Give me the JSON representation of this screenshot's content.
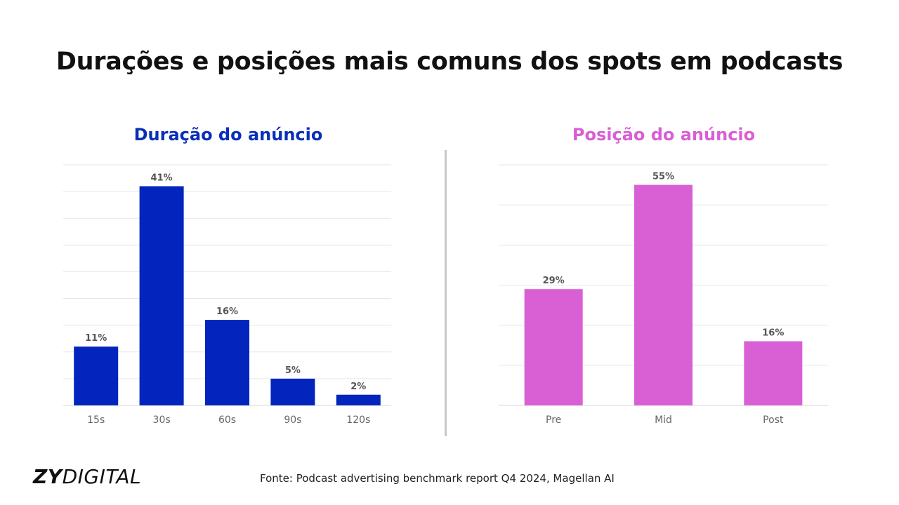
{
  "title": "Durações e posições mais comuns dos spots em podcasts",
  "footer": {
    "brand_bold": "ZY",
    "brand_light": "DIGITAL",
    "source": "Fonte: Podcast advertising benchmark report Q4 2024, Magellan AI"
  },
  "chart_data": [
    {
      "type": "bar",
      "title": "Duração do anúncio",
      "categories": [
        "15s",
        "30s",
        "60s",
        "90s",
        "120s"
      ],
      "values": [
        11,
        41,
        16,
        5,
        2
      ],
      "data_labels": [
        "11%",
        "41%",
        "16%",
        "5%",
        "2%"
      ],
      "ylim": [
        0,
        45
      ],
      "grid": true,
      "color": "#0325bd",
      "title_color": "#0a2fb8"
    },
    {
      "type": "bar",
      "title": "Posição do anúncio",
      "categories": [
        "Pre",
        "Mid",
        "Post"
      ],
      "values": [
        29,
        55,
        16
      ],
      "data_labels": [
        "29%",
        "55%",
        "16%"
      ],
      "ylim": [
        0,
        60
      ],
      "grid": true,
      "color": "#d95fd5",
      "title_color": "#d95fd5"
    }
  ]
}
